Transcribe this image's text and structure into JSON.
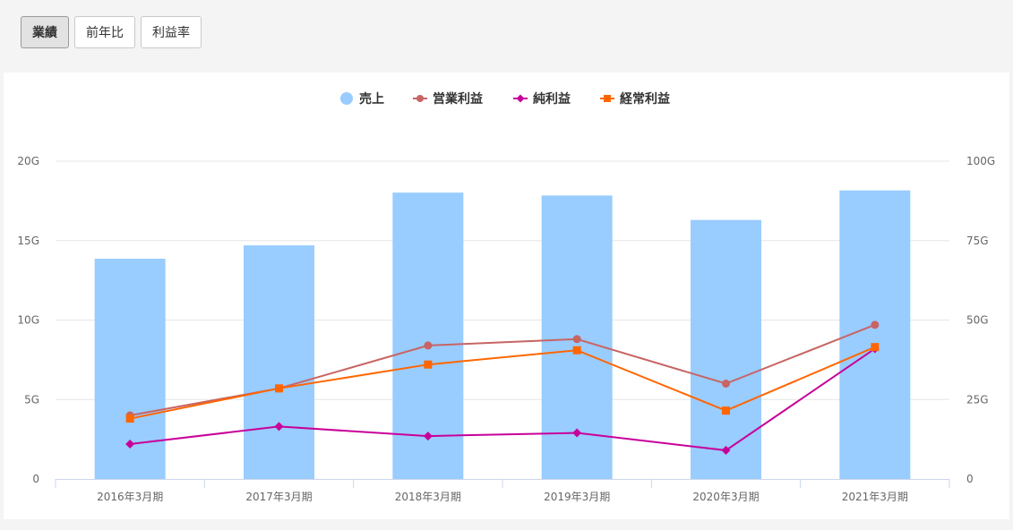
{
  "tabs": [
    {
      "label": "業績",
      "active": true
    },
    {
      "label": "前年比",
      "active": false
    },
    {
      "label": "利益率",
      "active": false
    }
  ],
  "chart_data": {
    "type": "bar",
    "categories": [
      "2016年3月期",
      "2017年3月期",
      "2018年3月期",
      "2019年3月期",
      "2020年3月期",
      "2021年3月期"
    ],
    "left_axis": {
      "ticks": [
        "0",
        "5G",
        "10G",
        "15G",
        "20G"
      ],
      "min": 0,
      "max": 20
    },
    "right_axis": {
      "ticks": [
        "0",
        "25G",
        "50G",
        "75G",
        "100G"
      ],
      "min": 0,
      "max": 100
    },
    "legend_position": "top-center",
    "series": [
      {
        "name": "売上",
        "kind": "bar",
        "axis": "right",
        "color": "#99ccff",
        "marker": "circle",
        "values": [
          69.3,
          73.5,
          90.1,
          89.2,
          81.5,
          90.8
        ]
      },
      {
        "name": "営業利益",
        "kind": "line",
        "axis": "left",
        "color": "#c86464",
        "marker": "circle",
        "values": [
          4.0,
          5.7,
          8.4,
          8.8,
          6.0,
          9.7
        ]
      },
      {
        "name": "純利益",
        "kind": "line",
        "axis": "left",
        "color": "#c8009a",
        "marker": "diamond",
        "values": [
          2.2,
          3.3,
          2.7,
          2.9,
          1.8,
          8.2
        ]
      },
      {
        "name": "経常利益",
        "kind": "line",
        "axis": "left",
        "color": "#ff6600",
        "marker": "square",
        "values": [
          3.8,
          5.7,
          7.2,
          8.1,
          4.3,
          8.3
        ]
      }
    ]
  }
}
